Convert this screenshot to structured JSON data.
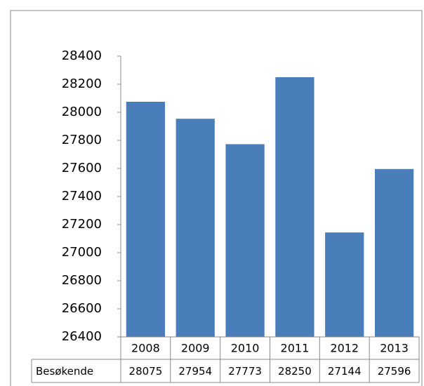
{
  "chart_data": {
    "type": "bar",
    "categories": [
      "2008",
      "2009",
      "2010",
      "2011",
      "2012",
      "2013"
    ],
    "series": [
      {
        "name": "Besøkende",
        "color": "#4a7ebb",
        "values": [
          28075,
          27954,
          27773,
          28250,
          27144,
          27596
        ]
      }
    ],
    "ylim": [
      26400,
      28400
    ],
    "yticks": [
      26400,
      26600,
      26800,
      27000,
      27200,
      27400,
      27600,
      27800,
      28000,
      28200,
      28400
    ],
    "grid": false,
    "data_table": true
  }
}
